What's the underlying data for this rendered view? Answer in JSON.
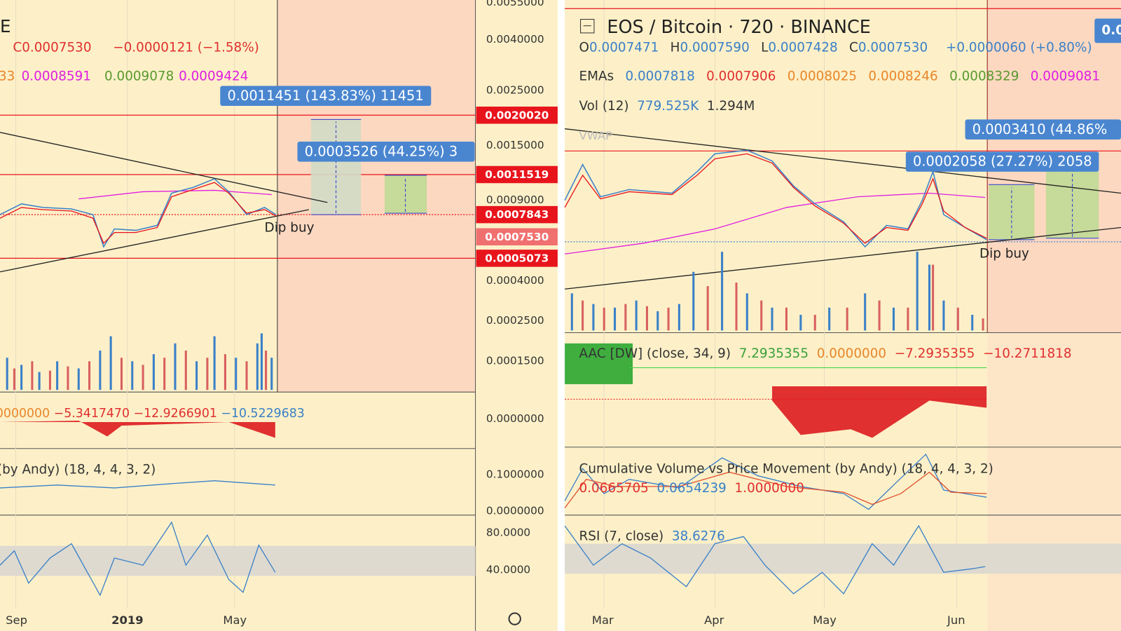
{
  "left": {
    "legend": {
      "title": "E",
      "close": "C0.0007530",
      "change": "−0.0000121 (−1.58%)",
      "emas": [
        "33",
        "0.0008591",
        "0.0009078",
        "0.0009424"
      ]
    },
    "measures": [
      "0.0011451 (143.83%) 11451",
      "0.0003526 (44.25%) 3"
    ],
    "annotation": "Dip buy",
    "axis_labels": [
      "0.0055000",
      "0.0040000",
      "0.0025000",
      "0.0015000",
      "0.0009000",
      "0.0004000",
      "0.0002500",
      "0.0001500",
      "0.0000000",
      "0.1000000",
      "0.0000000",
      "80.0000",
      "40.0000"
    ],
    "price_tags": [
      "0.0020020",
      "0.0011519",
      "0.0007843",
      "0.0007530",
      "0.0005073"
    ],
    "aac": [
      "0000000",
      "−5.3417470",
      "−12.9266901",
      "−10.5229683"
    ],
    "cvpm": "(by Andy) (18, 4, 4, 3, 2)",
    "time_labels": [
      "Sep",
      "2019",
      "May"
    ]
  },
  "right": {
    "title": "EOS / Bitcoin · 720 · BINANCE",
    "badge": "0.0",
    "ohlc": [
      {
        "label": "O",
        "value": "0.0007471"
      },
      {
        "label": "H",
        "value": "0.0007590"
      },
      {
        "label": "L",
        "value": "0.0007428"
      },
      {
        "label": "C",
        "value": "0.0007530"
      }
    ],
    "change": "+0.0000060 (+0.80%)",
    "emas_label": "EMAs",
    "emas": [
      "0.0007818",
      "0.0007906",
      "0.0008025",
      "0.0008246",
      "0.0008329",
      "0.0009081"
    ],
    "vol_label": "Vol (12)",
    "vol": [
      "779.525K",
      "1.294M"
    ],
    "vwap": "VWAP",
    "measures": [
      "0.0003410 (44.86%",
      "0.0002058 (27.27%) 2058"
    ],
    "annotation": "Dip buy",
    "aac_label": "AAC [DW] (close, 34, 9)",
    "aac": [
      "7.2935355",
      "0.0000000",
      "−7.2935355",
      "−10.2711818"
    ],
    "cvpm_label": "Cumulative Volume vs Price Movement (by Andy) (18, 4, 4, 3, 2)",
    "cvpm": [
      "0.0665705",
      "0.0654239",
      "1.0000000"
    ],
    "rsi_label": "RSI (7, close)",
    "rsi": "38.6276",
    "time_labels": [
      "Mar",
      "Apr",
      "May",
      "Jun"
    ]
  }
}
